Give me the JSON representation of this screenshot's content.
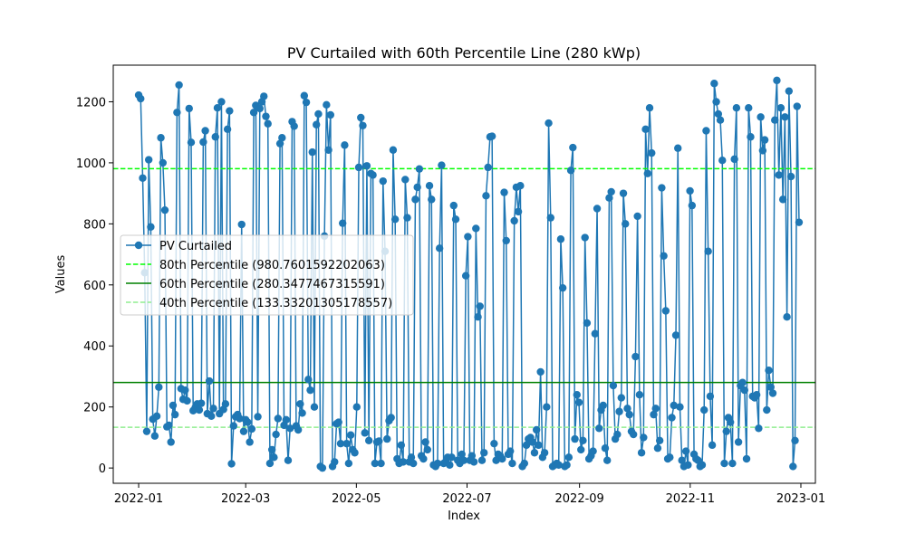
{
  "chart_data": {
    "type": "line",
    "title": "PV Curtailed with 60th Percentile Line (280 kWp)",
    "xlabel": "Index",
    "ylabel": "Values",
    "xlim": [
      "2021-12-18",
      "2023-01-09"
    ],
    "ylim": [
      -50,
      1320
    ],
    "x_ticks": [
      "2022-01",
      "2022-03",
      "2022-05",
      "2022-07",
      "2022-09",
      "2022-11",
      "2023-01"
    ],
    "y_ticks": [
      0,
      200,
      400,
      600,
      800,
      1000,
      1200
    ],
    "grid": false,
    "legend_position": "center-left",
    "series": [
      {
        "name": "PV Curtailed",
        "color": "#1f77b4",
        "marker": "circle",
        "x_start": "2022-01-01",
        "x_end": "2022-12-31",
        "values": [
          1222,
          1210,
          950,
          640,
          120,
          1010,
          790,
          160,
          105,
          170,
          265,
          1082,
          1000,
          845,
          135,
          140,
          85,
          205,
          175,
          1165,
          1255,
          260,
          225,
          255,
          220,
          1178,
          1067,
          188,
          198,
          210,
          190,
          212,
          1068,
          1105,
          178,
          285,
          170,
          195,
          1085,
          1180,
          178,
          1200,
          192,
          210,
          1110,
          1170,
          14,
          138,
          168,
          175,
          162,
          798,
          120,
          158,
          150,
          85,
          128,
          1165,
          1188,
          168,
          1178,
          1200,
          1218,
          1152,
          1128,
          15,
          60,
          35,
          110,
          162,
          1063,
          1082,
          140,
          158,
          25,
          130,
          1135,
          1120,
          138,
          125,
          210,
          180,
          1220,
          1198,
          290,
          255,
          1035,
          200,
          1125,
          1160,
          5,
          0,
          760,
          1190,
          1042,
          1157,
          5,
          20,
          145,
          150,
          80,
          802,
          1058,
          80,
          15,
          108,
          60,
          50,
          200,
          985,
          1148,
          1122,
          115,
          990,
          90,
          965,
          960,
          15,
          85,
          88,
          15,
          940,
          710,
          95,
          155,
          165,
          1042,
          815,
          30,
          15,
          75,
          20,
          945,
          820,
          20,
          35,
          15,
          880,
          920,
          980,
          40,
          30,
          85,
          60,
          925,
          880,
          10,
          5,
          15,
          720,
          992,
          15,
          20,
          35,
          10,
          35,
          860,
          815,
          25,
          15,
          45,
          25,
          630,
          758,
          25,
          40,
          20,
          785,
          495,
          530,
          25,
          50,
          892,
          985,
          1085,
          1087,
          80,
          25,
          45,
          40,
          30,
          903,
          745,
          45,
          55,
          15,
          810,
          920,
          840,
          925,
          5,
          15,
          75,
          95,
          100,
          85,
          50,
          125,
          75,
          315,
          35,
          50,
          200,
          1130,
          820,
          5,
          10,
          15,
          10,
          750,
          590,
          5,
          10,
          35,
          975,
          1050,
          95,
          240,
          215,
          60,
          90,
          755,
          475,
          30,
          40,
          55,
          440,
          850,
          130,
          190,
          205,
          65,
          25,
          885,
          905,
          270,
          95,
          110,
          185,
          230,
          900,
          800,
          195,
          175,
          120,
          110,
          365,
          825,
          240,
          50,
          100,
          1110,
          965,
          1180,
          1032,
          175,
          195,
          65,
          90,
          918,
          695,
          515,
          30,
          35,
          165,
          205,
          435,
          1048,
          200,
          25,
          5,
          55,
          10,
          908,
          860,
          45,
          30,
          25,
          5,
          10,
          190,
          1105,
          710,
          235,
          75,
          1260,
          1200,
          1160,
          1140,
          1008,
          15,
          120,
          165,
          150,
          15,
          1012,
          1180,
          85,
          270,
          280,
          255,
          30,
          1180,
          1085,
          235,
          230,
          240,
          130,
          1150,
          1040,
          1075,
          190,
          320,
          265,
          245,
          1140,
          1270,
          960,
          1180,
          880,
          1150,
          495,
          1235,
          955,
          5,
          90,
          1185,
          805
        ]
      }
    ],
    "reference_lines": [
      {
        "name": "80th Percentile (980.7601592202063)",
        "value": 980.7601592202063,
        "color": "#00ff00",
        "style": "dashed"
      },
      {
        "name": "60th Percentile (280.3477467315591)",
        "value": 280.3477467315591,
        "color": "#008000",
        "style": "solid"
      },
      {
        "name": "40th Percentile (133.33201305178557)",
        "value": 133.33201305178557,
        "color": "#90ee90",
        "style": "dashed"
      }
    ]
  }
}
